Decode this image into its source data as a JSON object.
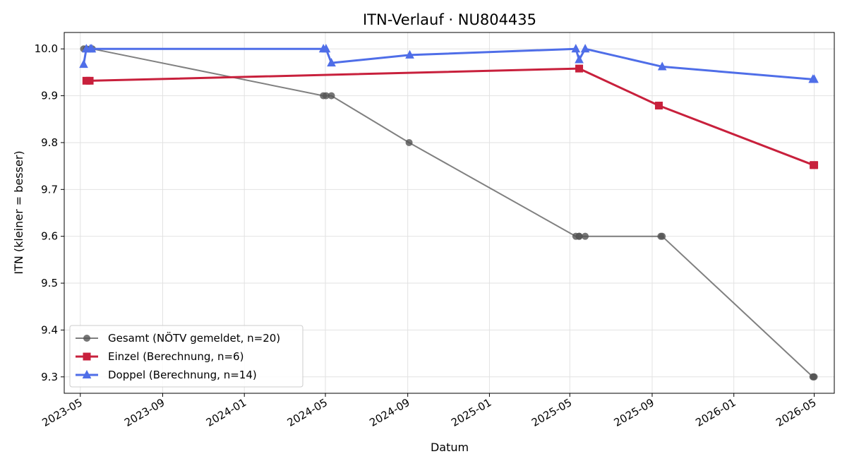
{
  "chart_data": {
    "type": "line",
    "title": "ITN-Verlauf · NU804435",
    "xlabel": "Datum",
    "ylabel": "ITN  (kleiner = besser)",
    "ylim": [
      9.265,
      10.035
    ],
    "xlim": [
      "2023-04-07",
      "2026-05-31"
    ],
    "yticks": [
      9.3,
      9.4,
      9.5,
      9.6,
      9.7,
      9.8,
      9.9,
      10.0
    ],
    "ytick_labels": [
      "9.3",
      "9.4",
      "9.5",
      "9.6",
      "9.7",
      "9.8",
      "9.9",
      "10.0"
    ],
    "xticks": [
      "2023-05-01",
      "2023-09-01",
      "2024-01-01",
      "2024-05-01",
      "2024-09-01",
      "2025-01-01",
      "2025-05-01",
      "2025-09-01",
      "2026-01-01",
      "2026-05-01"
    ],
    "xtick_labels": [
      "2023-05",
      "2023-09",
      "2024-01",
      "2024-05",
      "2024-09",
      "2025-01",
      "2025-05",
      "2025-09",
      "2026-01",
      "2026-05"
    ],
    "grid": true,
    "legend_position": "lower-left",
    "series": [
      {
        "name": "Gesamt (NÖTV gemeldet, n=20)",
        "color": "#555555",
        "marker": "circle",
        "points": [
          [
            "2023-05-06",
            10.0
          ],
          [
            "2023-05-10",
            10.0
          ],
          [
            "2023-05-16",
            10.0
          ],
          [
            "2023-05-19",
            10.0
          ],
          [
            "2024-04-28",
            9.9
          ],
          [
            "2024-05-02",
            9.9
          ],
          [
            "2024-05-10",
            9.9
          ],
          [
            "2024-09-03",
            9.8
          ],
          [
            "2025-05-10",
            9.6
          ],
          [
            "2025-05-15",
            9.6
          ],
          [
            "2025-05-15",
            9.6
          ],
          [
            "2025-05-24",
            9.6
          ],
          [
            "2025-09-14",
            9.6
          ],
          [
            "2025-09-16",
            9.6
          ],
          [
            "2026-04-29",
            9.3
          ],
          [
            "2026-04-30",
            9.3
          ],
          [
            "2026-05-01",
            9.3
          ]
        ]
      },
      {
        "name": "Einzel (Berechnung, n=6)",
        "color": "#c8203c",
        "marker": "square",
        "points": [
          [
            "2023-05-10",
            9.932
          ],
          [
            "2023-05-15",
            9.932
          ],
          [
            "2025-05-15",
            9.958
          ],
          [
            "2025-09-11",
            9.879
          ],
          [
            "2026-04-30",
            9.752
          ],
          [
            "2026-05-01",
            9.752
          ]
        ]
      },
      {
        "name": "Doppel (Berechnung, n=14)",
        "color": "#4f6ee8",
        "marker": "triangle",
        "points": [
          [
            "2023-05-06",
            9.967
          ],
          [
            "2023-05-10",
            10.0
          ],
          [
            "2023-05-16",
            10.0
          ],
          [
            "2023-05-18",
            10.0
          ],
          [
            "2024-04-28",
            10.0
          ],
          [
            "2024-05-02",
            10.0
          ],
          [
            "2024-05-10",
            9.97
          ],
          [
            "2024-09-04",
            9.987
          ],
          [
            "2025-05-10",
            10.0
          ],
          [
            "2025-05-15",
            9.977
          ],
          [
            "2025-05-24",
            10.0
          ],
          [
            "2025-09-16",
            9.962
          ],
          [
            "2026-04-29",
            9.935
          ],
          [
            "2026-05-01",
            9.935
          ]
        ]
      }
    ]
  }
}
